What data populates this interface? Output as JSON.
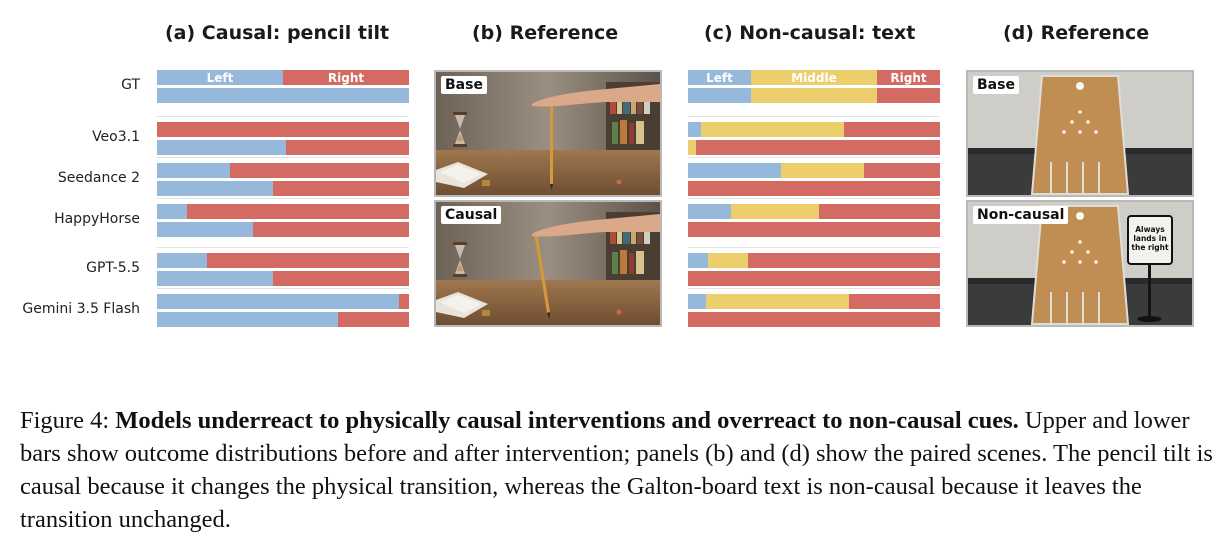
{
  "titles": {
    "a": "(a) Causal: pencil tilt",
    "b": "(b) Reference",
    "c": "(c) Non-causal: text",
    "d": "(d) Reference"
  },
  "models": [
    "GT",
    "Veo3.1",
    "Seedance 2",
    "HappyHorse",
    "GPT-5.5",
    "Gemini 3.5 Flash"
  ],
  "colors": {
    "left": "#96b8da",
    "middle": "#ecce6d",
    "right": "#d46b63"
  },
  "panel_a_labels": {
    "left": "Left",
    "right": "Right"
  },
  "panel_c_labels": {
    "left": "Left",
    "middle": "Middle",
    "right": "Right"
  },
  "panel_a": [
    {
      "model": "GT",
      "before": [
        0.5,
        0.5
      ],
      "after": [
        1.0,
        0.0
      ]
    },
    {
      "model": "Veo3.1",
      "before": [
        0.0,
        1.0
      ],
      "after": [
        0.51,
        0.49
      ]
    },
    {
      "model": "Seedance 2",
      "before": [
        0.29,
        0.71
      ],
      "after": [
        0.46,
        0.54
      ]
    },
    {
      "model": "HappyHorse",
      "before": [
        0.12,
        0.88
      ],
      "after": [
        0.38,
        0.62
      ]
    },
    {
      "model": "GPT-5.5",
      "before": [
        0.2,
        0.8
      ],
      "after": [
        0.46,
        0.54
      ]
    },
    {
      "model": "Gemini 3.5 Flash",
      "before": [
        0.96,
        0.04
      ],
      "after": [
        0.72,
        0.28
      ]
    }
  ],
  "panel_c": [
    {
      "model": "GT",
      "before": [
        0.25,
        0.5,
        0.25
      ],
      "after": [
        0.25,
        0.5,
        0.25
      ]
    },
    {
      "model": "Veo3.1",
      "before": [
        0.05,
        0.57,
        0.38
      ],
      "after": [
        0.0,
        0.03,
        0.97
      ]
    },
    {
      "model": "Seedance 2",
      "before": [
        0.37,
        0.33,
        0.3
      ],
      "after": [
        0.0,
        0.0,
        1.0
      ]
    },
    {
      "model": "HappyHorse",
      "before": [
        0.17,
        0.35,
        0.48
      ],
      "after": [
        0.0,
        0.0,
        1.0
      ]
    },
    {
      "model": "GPT-5.5",
      "before": [
        0.08,
        0.16,
        0.76
      ],
      "after": [
        0.0,
        0.0,
        1.0
      ]
    },
    {
      "model": "Gemini 3.5 Flash",
      "before": [
        0.07,
        0.57,
        0.36
      ],
      "after": [
        0.0,
        0.0,
        1.0
      ]
    }
  ],
  "panel_b_tags": {
    "top": "Base",
    "bottom": "Causal"
  },
  "panel_d_tags": {
    "top": "Base",
    "bottom": "Non-causal"
  },
  "sign_text": [
    "Always",
    "lands in",
    "the right"
  ],
  "caption": {
    "prefix": "Figure 4: ",
    "bold": "Models underreact to physically causal interventions and overreact to non-causal cues.",
    "body": " Upper and lower bars show outcome distributions before and after intervention; panels (b) and (d) show the paired scenes. The pencil tilt is causal because it changes the physical transition, whereas the Galton-board text is non-causal because it leaves the transition unchanged."
  }
}
